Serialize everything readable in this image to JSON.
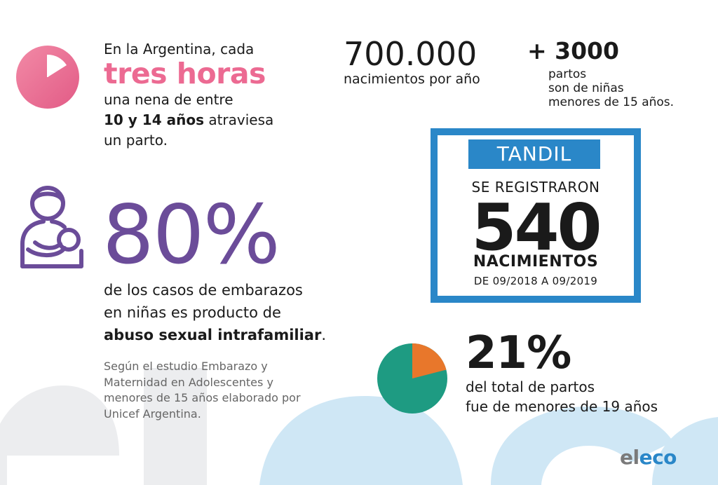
{
  "colors": {
    "pink": "#ec6a92",
    "purple": "#6b4c99",
    "blue": "#2a87c8",
    "teal": "#1e9b82",
    "orange": "#e8772b",
    "watermark_gray": "#ecedef",
    "watermark_blue": "#c5e3f3"
  },
  "icons": {
    "clock": "clock-icon",
    "mother": "mother-with-baby-icon",
    "pie": "pie-chart-icon"
  },
  "lead": {
    "line1": "En la Argentina, cada",
    "highlight": "tres horas",
    "line2": "una nena de entre",
    "line3_bold": "10 y 14 años",
    "line3_rest": " atraviesa",
    "line4": "un parto."
  },
  "births": {
    "number": "700.000",
    "label": "nacimientos por año"
  },
  "partos": {
    "number": "+ 3000",
    "label_lines": [
      "partos",
      "son de niñas",
      "menores de 15 años."
    ]
  },
  "abuse": {
    "percent": "80%",
    "line1": "de los casos de embarazos",
    "line2": "en niñas es producto de",
    "line3_bold": "abuso sexual intrafamiliar",
    "line3_end": "."
  },
  "source": {
    "lines": [
      "Según el estudio Embarazo y",
      "Maternidad en Adolescentes y",
      "menores de 15 años elaborado por",
      "Unicef Argentina."
    ]
  },
  "tandil": {
    "title": "TANDIL",
    "registered": "SE REGISTRARON",
    "count": "540",
    "births_label": "NACIMIENTOS",
    "range": "DE 09/2018 A 09/2019"
  },
  "minors": {
    "percent": "21%",
    "fraction": 0.21,
    "line1": "del total de partos",
    "line2": "fue de menores de 19 años"
  },
  "logo": {
    "part1": "el",
    "part2": "eco"
  }
}
